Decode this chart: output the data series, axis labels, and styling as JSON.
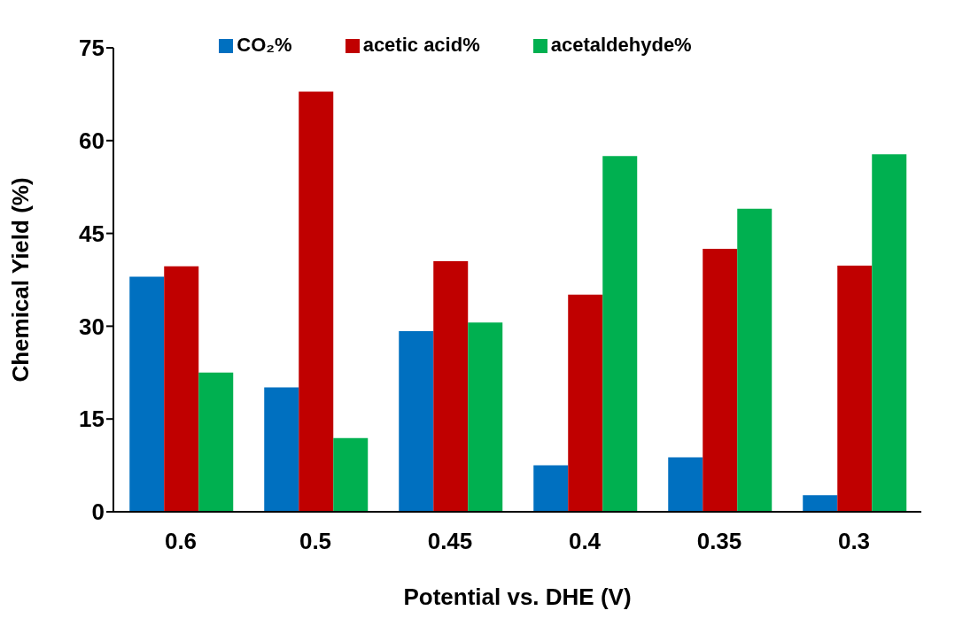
{
  "chart_data": {
    "type": "bar",
    "xlabel": "Potential vs. DHE (V)",
    "ylabel": "Chemical Yield (%)",
    "categories": [
      "0.6",
      "0.5",
      "0.45",
      "0.4",
      "0.35",
      "0.3"
    ],
    "series": [
      {
        "name": "CO₂%",
        "color": "#0070c0",
        "values": [
          38.0,
          20.1,
          29.2,
          7.5,
          8.8,
          2.7
        ]
      },
      {
        "name": "acetic acid%",
        "color": "#c00000",
        "values": [
          39.7,
          67.9,
          40.5,
          35.1,
          42.5,
          39.8
        ]
      },
      {
        "name": "acetaldehyde%",
        "color": "#00b050",
        "values": [
          22.5,
          11.9,
          30.6,
          57.5,
          49.0,
          57.8
        ]
      }
    ],
    "ylim": [
      0,
      75
    ],
    "yticks": [
      0,
      15,
      30,
      45,
      60,
      75
    ],
    "grid": false,
    "legend": "top"
  }
}
